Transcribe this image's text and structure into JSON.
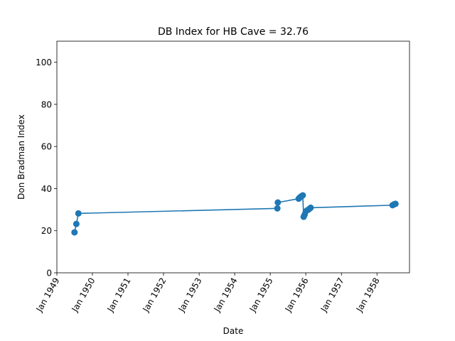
{
  "chart_data": {
    "type": "line",
    "title": "DB Index for HB Cave = 32.76",
    "xlabel": "Date",
    "ylabel": "Don Bradman Index",
    "xlim": [
      "1949-01-01",
      "1958-12-01"
    ],
    "ylim": [
      0,
      110
    ],
    "yticks": [
      0,
      20,
      40,
      60,
      80,
      100
    ],
    "xticks": [
      {
        "date": "1949-01-01",
        "label": "Jan 1949"
      },
      {
        "date": "1950-01-01",
        "label": "Jan 1950"
      },
      {
        "date": "1951-01-01",
        "label": "Jan 1951"
      },
      {
        "date": "1952-01-01",
        "label": "Jan 1952"
      },
      {
        "date": "1953-01-01",
        "label": "Jan 1953"
      },
      {
        "date": "1954-01-01",
        "label": "Jan 1954"
      },
      {
        "date": "1955-01-01",
        "label": "Jan 1955"
      },
      {
        "date": "1956-01-01",
        "label": "Jan 1956"
      },
      {
        "date": "1957-01-01",
        "label": "Jan 1957"
      },
      {
        "date": "1958-01-01",
        "label": "Jan 1958"
      }
    ],
    "grid": false,
    "legend": "none",
    "color": "#1f77b4",
    "series": [
      {
        "points": [
          {
            "x": "1949-07-01",
            "y": 19.2
          },
          {
            "x": "1949-07-20",
            "y": 23.2
          },
          {
            "x": "1949-08-10",
            "y": 28.2
          },
          {
            "x": "1955-03-15",
            "y": 30.6
          },
          {
            "x": "1955-03-20",
            "y": 33.4
          },
          {
            "x": "1955-10-20",
            "y": 35.2
          },
          {
            "x": "1955-11-01",
            "y": 35.8
          },
          {
            "x": "1955-11-15",
            "y": 36.3
          },
          {
            "x": "1955-12-01",
            "y": 36.8
          },
          {
            "x": "1955-12-10",
            "y": 26.6
          },
          {
            "x": "1955-12-20",
            "y": 27.6
          },
          {
            "x": "1956-01-01",
            "y": 29.2
          },
          {
            "x": "1956-01-20",
            "y": 29.8
          },
          {
            "x": "1956-02-05",
            "y": 30.3
          },
          {
            "x": "1956-02-20",
            "y": 30.9
          },
          {
            "x": "1958-06-10",
            "y": 32.1
          },
          {
            "x": "1958-06-25",
            "y": 32.5
          },
          {
            "x": "1958-07-10",
            "y": 32.76
          }
        ]
      }
    ]
  }
}
